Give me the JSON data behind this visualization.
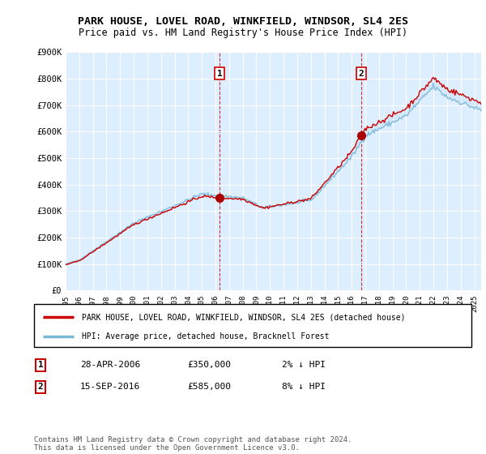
{
  "title": "PARK HOUSE, LOVEL ROAD, WINKFIELD, WINDSOR, SL4 2ES",
  "subtitle": "Price paid vs. HM Land Registry's House Price Index (HPI)",
  "hpi_label": "HPI: Average price, detached house, Bracknell Forest",
  "property_label": "PARK HOUSE, LOVEL ROAD, WINKFIELD, WINDSOR, SL4 2ES (detached house)",
  "sale1_date": "28-APR-2006",
  "sale1_price": "£350,000",
  "sale1_hpi": "2% ↓ HPI",
  "sale1_year": 2006.3,
  "sale1_value": 350000,
  "sale2_date": "15-SEP-2016",
  "sale2_price": "£585,000",
  "sale2_hpi": "8% ↓ HPI",
  "sale2_year": 2016.7,
  "sale2_value": 585000,
  "footer": "Contains HM Land Registry data © Crown copyright and database right 2024.\nThis data is licensed under the Open Government Licence v3.0.",
  "bg_color": "#ddeeff",
  "fill_color": "#c8dff0",
  "line_color_hpi": "#7ab8d8",
  "line_color_property": "#cc0000",
  "marker_color": "#aa0000",
  "sale_line_color": "#cc0000",
  "ylim": [
    0,
    900000
  ],
  "yticks": [
    0,
    100000,
    200000,
    300000,
    400000,
    500000,
    600000,
    700000,
    800000,
    900000
  ],
  "xlim_start": 1995.0,
  "xlim_end": 2025.5
}
